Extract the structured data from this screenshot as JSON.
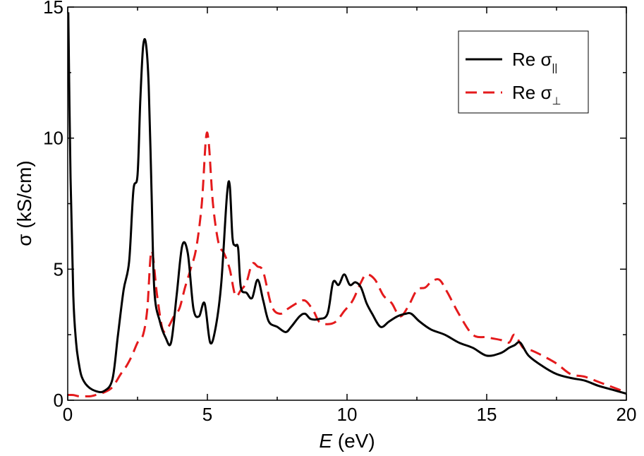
{
  "chart_data": {
    "type": "line",
    "title": "",
    "xlabel_italic": "E",
    "xlabel_rest": " (eV)",
    "ylabel": "σ  (kS/cm)",
    "xlim": [
      0,
      20
    ],
    "ylim": [
      0,
      15
    ],
    "x_ticks": [
      0,
      5,
      10,
      15,
      20
    ],
    "y_ticks": [
      0,
      5,
      10,
      15
    ],
    "grid": false,
    "legend_position": "top-right",
    "series": [
      {
        "name": "Re σ∥",
        "legend_main": "Re σ",
        "legend_sub": "||",
        "color": "#000000",
        "dash": "solid",
        "x": [
          0.02,
          0.1,
          0.2,
          0.3,
          0.4,
          0.5,
          0.7,
          1.0,
          1.3,
          1.6,
          1.8,
          2.0,
          2.2,
          2.35,
          2.5,
          2.6,
          2.7,
          2.8,
          2.9,
          3.0,
          3.1,
          3.3,
          3.5,
          3.7,
          3.9,
          4.1,
          4.3,
          4.5,
          4.7,
          4.9,
          5.1,
          5.3,
          5.5,
          5.7,
          5.8,
          5.9,
          6.0,
          6.1,
          6.2,
          6.4,
          6.6,
          6.8,
          7.0,
          7.2,
          7.5,
          7.8,
          8.0,
          8.3,
          8.5,
          8.7,
          9.0,
          9.3,
          9.5,
          9.7,
          9.9,
          10.1,
          10.3,
          10.5,
          10.7,
          10.9,
          11.2,
          11.5,
          11.8,
          12.1,
          12.3,
          12.6,
          13.0,
          13.5,
          14.0,
          14.5,
          15.0,
          15.5,
          15.8,
          16.0,
          16.2,
          16.5,
          17.0,
          17.5,
          18.0,
          18.5,
          19.0,
          19.5,
          20.0
        ],
        "values": [
          14.8,
          8.5,
          4.0,
          2.2,
          1.4,
          0.9,
          0.55,
          0.35,
          0.35,
          0.8,
          2.5,
          4.2,
          5.3,
          8.0,
          8.6,
          11.5,
          13.5,
          13.6,
          12.0,
          8.0,
          4.2,
          3.0,
          2.4,
          2.2,
          4.0,
          5.9,
          5.6,
          3.5,
          3.2,
          3.7,
          2.2,
          2.8,
          4.5,
          7.8,
          8.2,
          6.2,
          5.9,
          5.8,
          4.3,
          4.1,
          3.9,
          4.6,
          3.8,
          3.0,
          2.8,
          2.6,
          2.8,
          3.2,
          3.3,
          3.1,
          3.1,
          3.3,
          4.5,
          4.4,
          4.8,
          4.4,
          4.5,
          4.3,
          3.7,
          3.3,
          2.8,
          3.0,
          3.2,
          3.3,
          3.3,
          3.0,
          2.7,
          2.5,
          2.2,
          2.0,
          1.7,
          1.8,
          2.0,
          2.1,
          2.2,
          1.7,
          1.3,
          1.0,
          0.85,
          0.75,
          0.55,
          0.4,
          0.25
        ]
      },
      {
        "name": "Re σ⊥",
        "legend_main": "Re σ",
        "legend_sub": "⊥",
        "color": "#e41a1c",
        "dash": "dashed",
        "x": [
          0.0,
          0.2,
          0.4,
          0.6,
          0.8,
          1.0,
          1.3,
          1.6,
          1.9,
          2.1,
          2.3,
          2.5,
          2.7,
          2.85,
          3.0,
          3.2,
          3.4,
          3.6,
          3.8,
          4.0,
          4.2,
          4.4,
          4.6,
          4.8,
          4.95,
          5.05,
          5.2,
          5.4,
          5.6,
          5.8,
          6.0,
          6.2,
          6.4,
          6.6,
          6.8,
          7.0,
          7.3,
          7.6,
          7.9,
          8.2,
          8.5,
          8.8,
          9.0,
          9.3,
          9.6,
          9.9,
          10.2,
          10.5,
          10.7,
          11.0,
          11.3,
          11.6,
          11.9,
          12.2,
          12.5,
          12.8,
          13.0,
          13.3,
          13.6,
          14.0,
          14.5,
          15.0,
          15.5,
          15.8,
          16.0,
          16.3,
          16.6,
          17.0,
          17.5,
          18.0,
          18.5,
          19.0,
          19.5,
          20.0
        ],
        "values": [
          0.2,
          0.2,
          0.15,
          0.15,
          0.15,
          0.2,
          0.3,
          0.5,
          1.0,
          1.3,
          1.7,
          2.2,
          2.5,
          3.5,
          5.7,
          4.0,
          2.7,
          2.8,
          3.2,
          3.5,
          4.3,
          5.0,
          5.8,
          7.5,
          10.0,
          9.8,
          7.5,
          6.0,
          5.6,
          5.0,
          4.0,
          4.2,
          4.5,
          5.2,
          5.1,
          4.9,
          3.6,
          3.3,
          3.5,
          3.7,
          3.8,
          3.4,
          3.0,
          2.9,
          3.0,
          3.4,
          3.8,
          4.5,
          4.8,
          4.6,
          4.0,
          3.7,
          3.2,
          3.6,
          4.2,
          4.3,
          4.5,
          4.6,
          4.1,
          3.3,
          2.5,
          2.4,
          2.3,
          2.2,
          2.5,
          2.0,
          1.9,
          1.7,
          1.4,
          1.0,
          0.9,
          0.7,
          0.5,
          0.3
        ]
      }
    ]
  }
}
